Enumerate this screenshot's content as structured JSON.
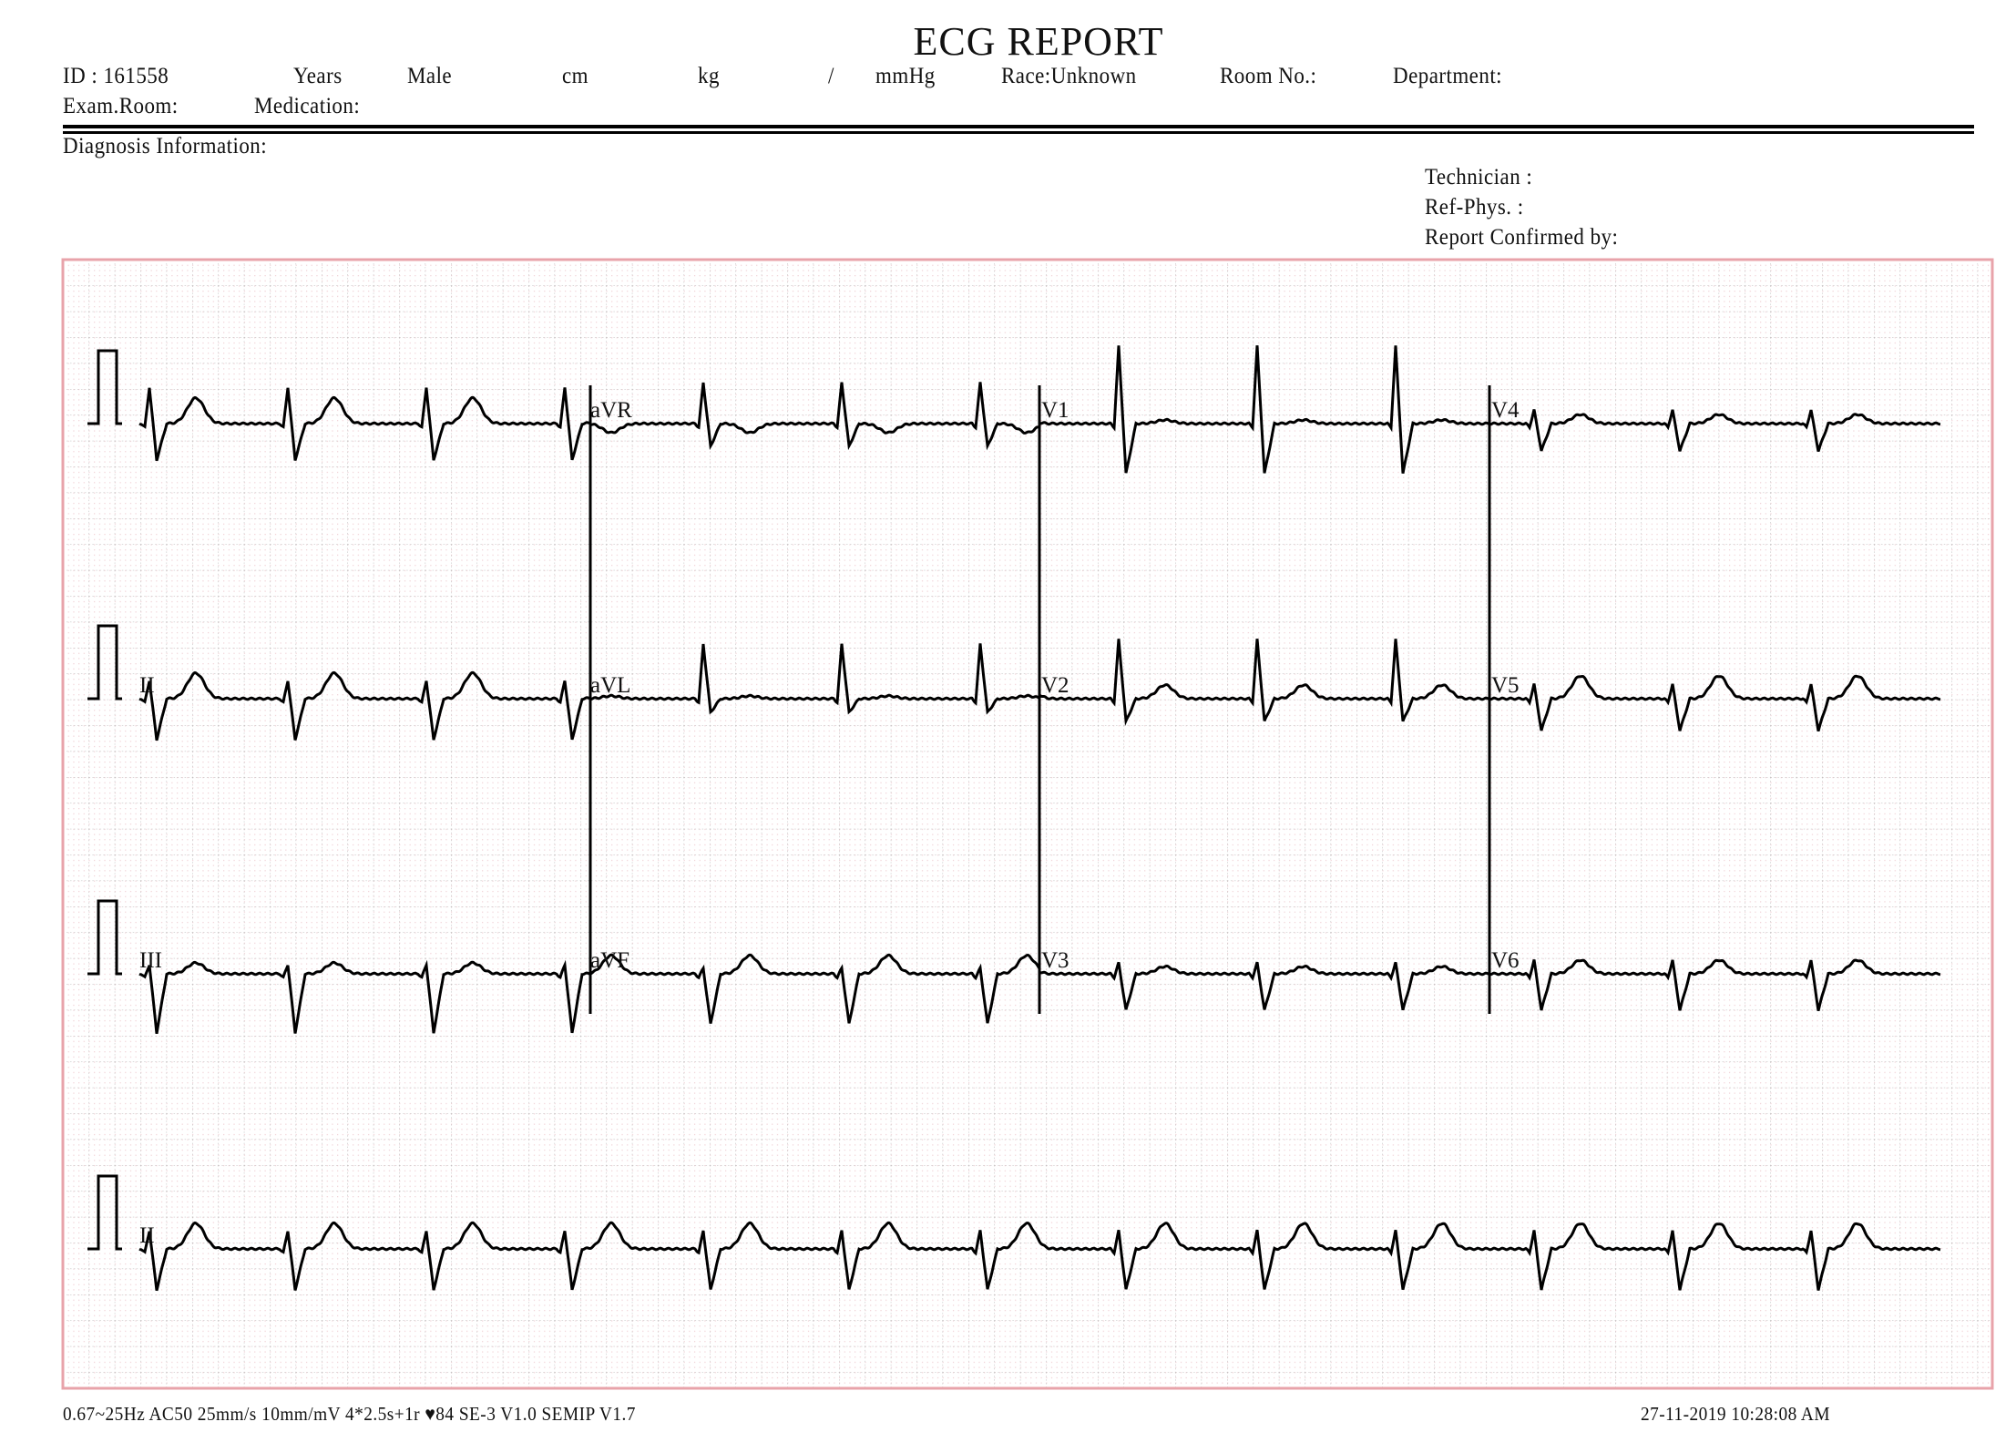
{
  "header": {
    "title": "ECG  REPORT",
    "id": "ID : 161558",
    "years": "Years",
    "sex": "Male",
    "height_unit": "cm",
    "weight_unit": "kg",
    "bp_separator": "/",
    "bp_unit": "mmHg",
    "race": "Race:Unknown",
    "room_no": "Room  No.:",
    "department": "Department:",
    "exam_room": "Exam.Room:",
    "medication": "Medication:",
    "diagnosis": "Diagnosis  Information:",
    "technician": "Technician :",
    "ref_phys": "Ref-Phys. :",
    "confirmed_by": "Report  Confirmed  by:"
  },
  "leads": {
    "row1": [
      "",
      "aVR",
      "V1",
      "V4"
    ],
    "row2": [
      "II",
      "aVL",
      "V2",
      "V5"
    ],
    "row3": [
      "III",
      "aVF",
      "V3",
      "V6"
    ],
    "rhythm": "II"
  },
  "footer": {
    "settings": "0.67~25Hz  AC50  25mm/s  10mm/mV  4*2.5s+1r  ♥84   SE-3  V1.0  SEMIP  V1.7",
    "heart_rate": 84,
    "datetime": "27-11-2019   10:28:08  AM"
  },
  "colors": {
    "grid_border": "#e8a3aa",
    "grid_major": "#b8b8b8",
    "grid_minor": "#f3d6da",
    "trace": "#000000"
  }
}
